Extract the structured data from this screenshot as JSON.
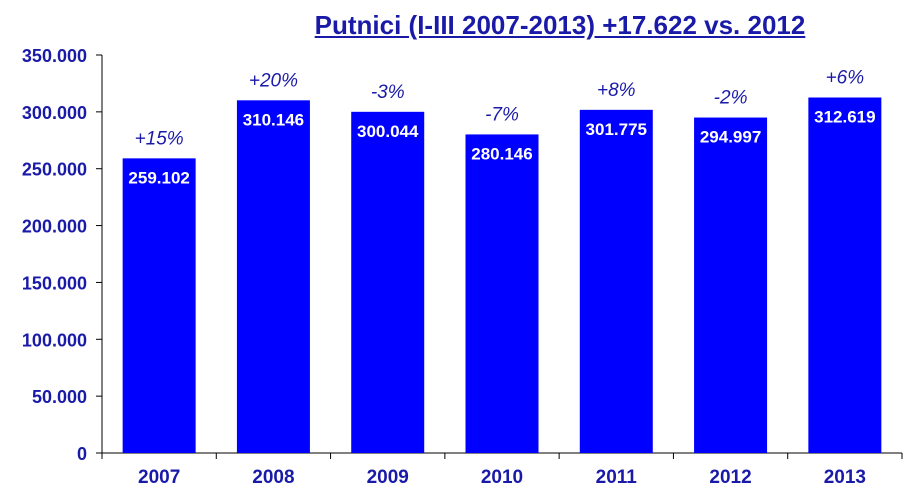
{
  "chart_data": {
    "type": "bar",
    "title": "Putnici (I-III 2007-2013) +17.622 vs. 2012",
    "xlabel": "",
    "ylabel": "",
    "ylim": [
      0,
      350000
    ],
    "yticks": [
      0,
      50000,
      100000,
      150000,
      200000,
      250000,
      300000,
      350000
    ],
    "ytick_labels": [
      "0",
      "50.000",
      "100.000",
      "150.000",
      "200.000",
      "250.000",
      "300.000",
      "350.000"
    ],
    "categories": [
      "2007",
      "2008",
      "2009",
      "2010",
      "2011",
      "2012",
      "2013"
    ],
    "values": [
      259102,
      310146,
      300044,
      280146,
      301775,
      294997,
      312619
    ],
    "value_labels": [
      "259.102",
      "310.146",
      "300.044",
      "280.146",
      "301.775",
      "294.997",
      "312.619"
    ],
    "change_labels": [
      "+15%",
      "+20%",
      "-3%",
      "-7%",
      "+8%",
      "-2%",
      "+6%"
    ],
    "colors": {
      "bar": "#0000ff",
      "text": "#1a1aa8",
      "bar_label": "#ffffff"
    },
    "grid": false,
    "legend": "none"
  }
}
